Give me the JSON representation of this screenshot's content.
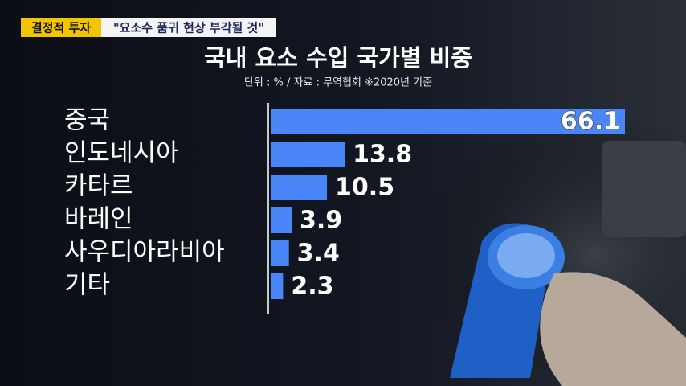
{
  "header": {
    "tag": "결정적 투자",
    "headline": "\"요소수 품귀 현상 부각될 것\""
  },
  "chart_data": {
    "type": "bar",
    "orientation": "horizontal",
    "title": "국내 요소 수입 국가별 비중",
    "subtitle": "단위 : % / 자료 : 무역협회 ※2020년 기준",
    "categories": [
      "중국",
      "인도네시아",
      "카타르",
      "바레인",
      "사우디아라비아",
      "기타"
    ],
    "values": [
      66.1,
      13.8,
      10.5,
      3.9,
      3.4,
      2.3
    ],
    "color": "#4a86f7"
  }
}
